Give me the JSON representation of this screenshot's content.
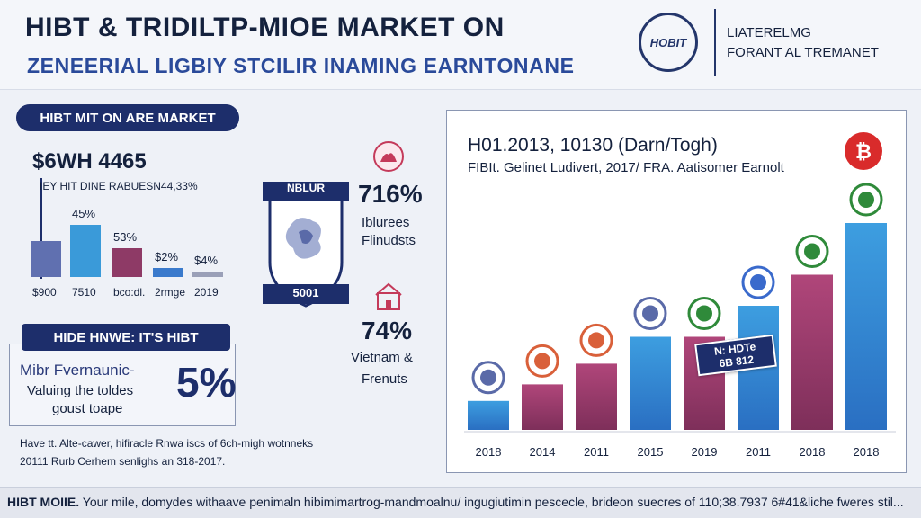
{
  "header": {
    "title": "HIBT & TRIDILTP-MIOE MARKET ON",
    "subtitle": "ZENEERIAL LIGBIY STCILIR INAMING EARNTONANE",
    "logo_text": "HOBIT",
    "tag_line1": "LIATERELMG",
    "tag_line2": "FORANT AL TREMANET"
  },
  "left_panel": {
    "pill_label": "HIBT MIT ON ARE MARKET",
    "big_stat": "$6WH 4465",
    "sub_stat": "IEY   HIT DINE RABUESN44,33%",
    "mini_chart": {
      "type": "bar",
      "categories": [
        "$900",
        "7510",
        "bco:dl.",
        "2rmge",
        "2019"
      ],
      "values": [
        40,
        58,
        32,
        10,
        6
      ],
      "labels": [
        "",
        "45%",
        "53%",
        "$2%",
        "$4%"
      ],
      "colors": [
        "#6070b0",
        "#3a9ad9",
        "#8e3a66",
        "#3a7acc",
        "#9aa0b8"
      ]
    }
  },
  "middle_panel": {
    "shield_top": "NBLUR",
    "shield_bottom": "5001",
    "stat1_pct": "716%",
    "stat1_line1": "Iblurees",
    "stat1_line2": "Flinudsts",
    "stat2_pct": "74%",
    "stat2_line1": "Vietnam &",
    "stat2_line2": "Frenuts"
  },
  "hide_panel": {
    "pill_label": "HIDE HNWE: IT'S HIBT",
    "line1": "Mibr Fvernaunic-",
    "line2": "Valuing the toldes",
    "line3": "goust toape",
    "pct": "5%"
  },
  "notes": {
    "line1": "Have tt. Alte-cawer, hifiracle Rnwa iscs of 6ch-migh wotnneks",
    "line2": "20111 Rurb Cerhem senlighs an 318-2017."
  },
  "chart_data": {
    "type": "bar",
    "title": "H01.2013, 10130 (Darn/Togh)",
    "subtitle": "FIBIt. Gelinet Ludivert, 2017/ FRA. Aatisomer Earnolt",
    "categories": [
      "2018",
      "2014",
      "2011",
      "2015",
      "2019",
      "2011",
      "2018",
      "2018"
    ],
    "values": [
      14,
      22,
      32,
      45,
      45,
      60,
      75,
      100
    ],
    "ylim": [
      0,
      100
    ],
    "ribbon_line1": "N: HDTe",
    "ribbon_line2": "6B 812"
  },
  "footer": {
    "bold": "HIBT MOIIE.",
    "text": " Your mile, domydes withaave penimaln hibimimartrog-mandmoalnu/ ingugiutimin pescecle, brideon suecres of 110;38.7937 6#41&liche fweres stil..."
  },
  "colors": {
    "navy": "#1d2e6b",
    "blue": "#3a9ad9",
    "magenta": "#8e3a66",
    "bitcoin_red": "#d92b2b",
    "green": "#2f8a3a"
  }
}
